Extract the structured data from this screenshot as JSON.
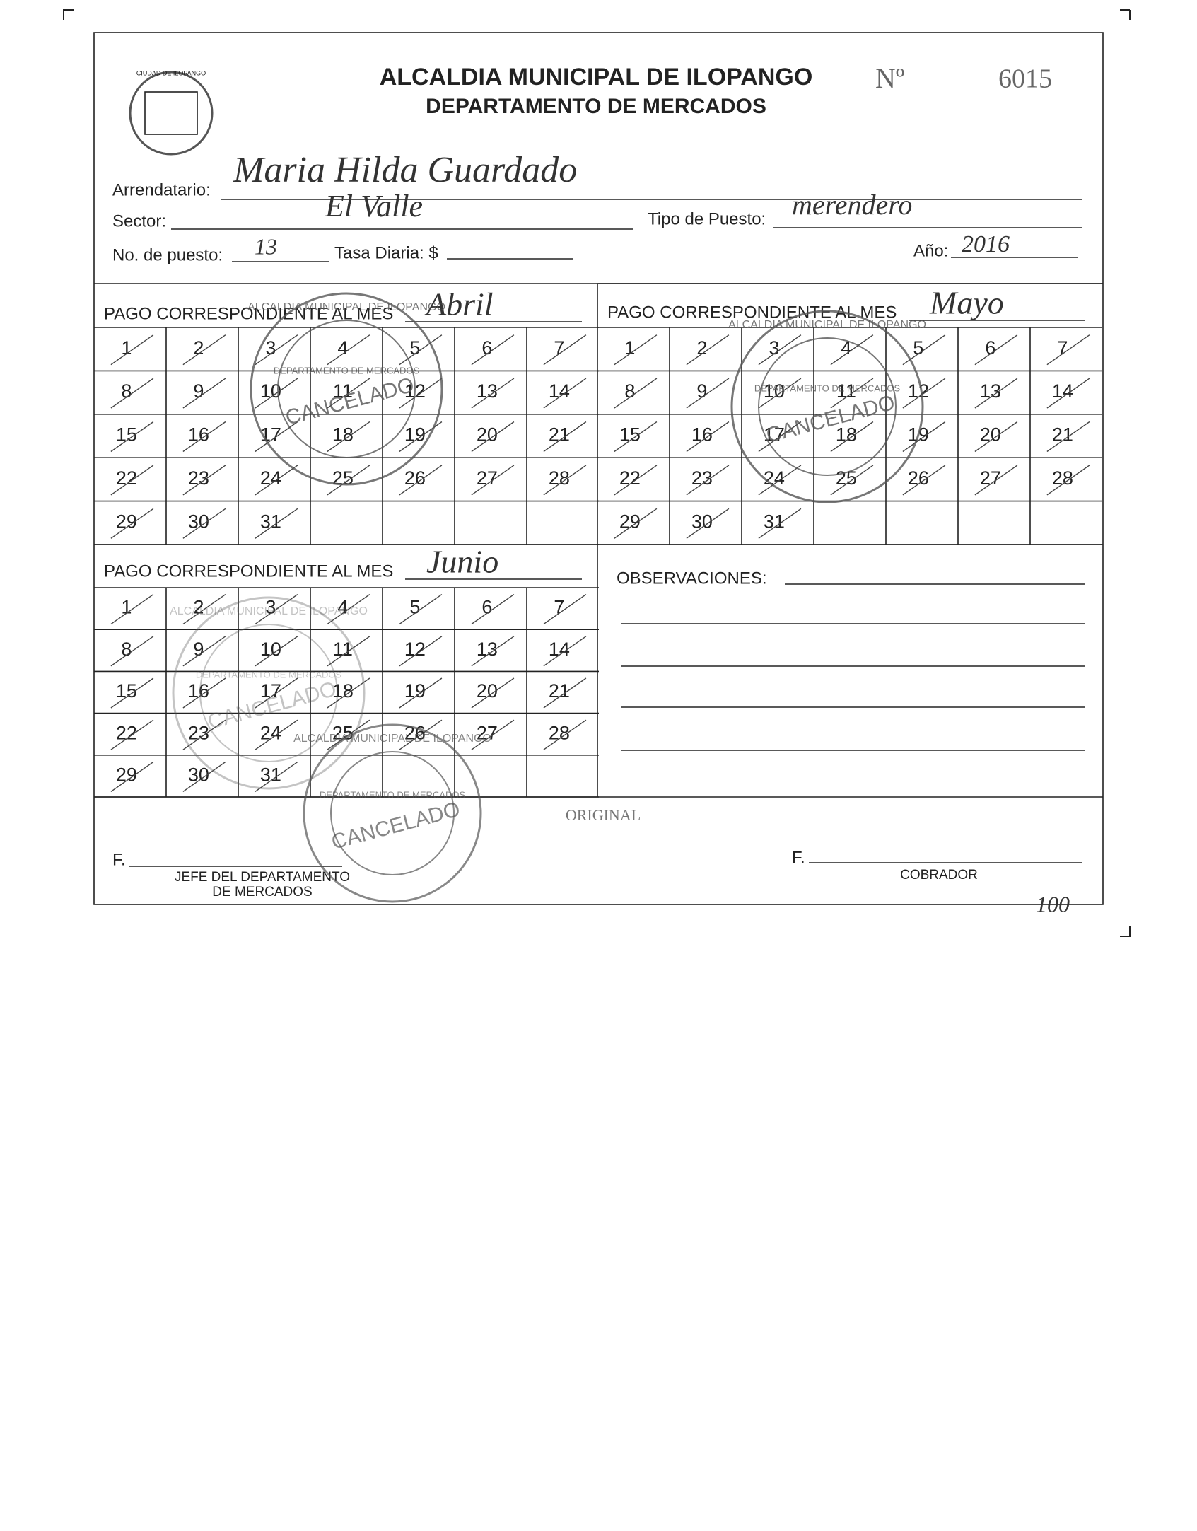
{
  "header": {
    "title": "ALCALDIA MUNICIPAL DE ILOPANGO",
    "subtitle": "DEPARTAMENTO DE MERCADOS",
    "number_label": "Nº",
    "number": "6015",
    "logo_text": "CIUDAD DE ILOPANGO"
  },
  "fields": {
    "arrendatario": {
      "label": "Arrendatario:",
      "value": "Maria Hilda Guardado"
    },
    "sector": {
      "label": "Sector:",
      "value": "El Valle"
    },
    "tipo": {
      "label": "Tipo de Puesto:",
      "value": "merendero"
    },
    "puesto": {
      "label": "No. de puesto:",
      "value": "13"
    },
    "tasa": {
      "label": "Tasa Diaria: $"
    },
    "ano": {
      "label": "Año:",
      "value": "2016"
    }
  },
  "months": [
    {
      "label": "PAGO CORRESPONDIENTE AL MES",
      "month": "Abril",
      "days": [
        1,
        2,
        3,
        4,
        5,
        6,
        7,
        8,
        9,
        10,
        11,
        12,
        13,
        14,
        15,
        16,
        17,
        18,
        19,
        20,
        21,
        22,
        23,
        24,
        25,
        26,
        27,
        28,
        29,
        30,
        31
      ]
    },
    {
      "label": "PAGO CORRESPONDIENTE AL MES",
      "month": "Mayo",
      "days": [
        1,
        2,
        3,
        4,
        5,
        6,
        7,
        8,
        9,
        10,
        11,
        12,
        13,
        14,
        15,
        16,
        17,
        18,
        19,
        20,
        21,
        22,
        23,
        24,
        25,
        26,
        27,
        28,
        29,
        30,
        31
      ]
    },
    {
      "label": "PAGO CORRESPONDIENTE AL MES",
      "month": "Junio",
      "days": [
        1,
        2,
        3,
        4,
        5,
        6,
        7,
        8,
        9,
        10,
        11,
        12,
        13,
        14,
        15,
        16,
        17,
        18,
        19,
        20,
        21,
        22,
        23,
        24,
        25,
        26,
        27,
        28,
        29,
        30,
        31
      ]
    }
  ],
  "observaciones": {
    "label": "OBSERVACIONES:"
  },
  "stamp": {
    "ring": "ALCALDIA MUNICIPAL DE ILOPANGO",
    "center": "DEPARTAMENTO DE MERCADOS",
    "status": "CANCELADO"
  },
  "footer": {
    "original": "ORIGINAL",
    "sign_left": "F.",
    "sign_right": "F.",
    "jefe_line1": "JEFE DEL DEPARTAMENTO",
    "jefe_line2": "DE MERCADOS",
    "cobrador": "COBRADOR",
    "note": "100"
  }
}
